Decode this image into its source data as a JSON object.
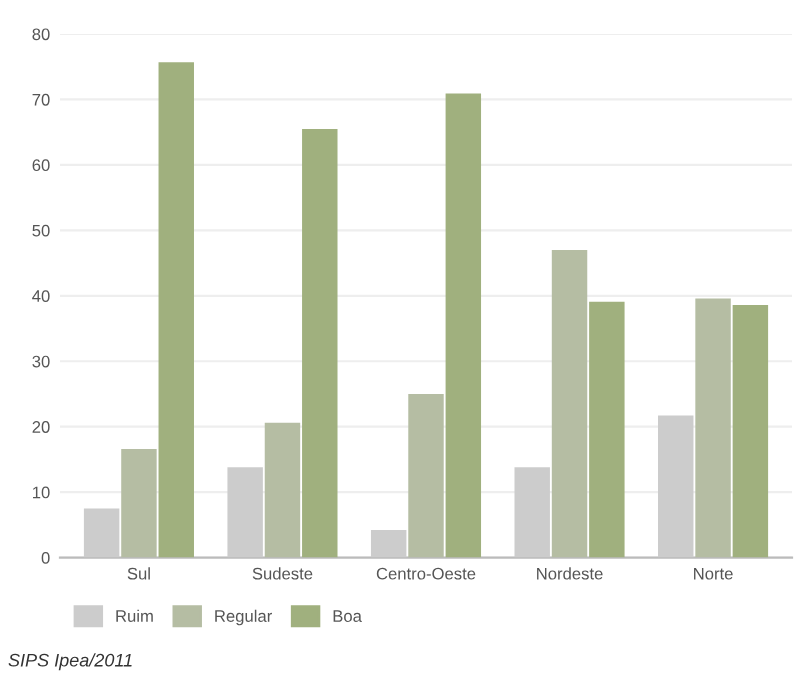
{
  "chart_data": {
    "type": "bar",
    "categories": [
      "Sul",
      "Sudeste",
      "Centro-Oeste",
      "Nordeste",
      "Norte"
    ],
    "series": [
      {
        "name": "Ruim",
        "color": "#cccccc",
        "values": [
          7.5,
          13.8,
          4.2,
          13.8,
          21.7
        ]
      },
      {
        "name": "Regular",
        "color": "#b5bda3",
        "values": [
          16.6,
          20.6,
          25.0,
          47.0,
          39.6
        ]
      },
      {
        "name": "Boa",
        "color": "#a0b07e",
        "values": [
          75.7,
          65.5,
          70.9,
          39.1,
          38.6
        ]
      }
    ],
    "ylim": [
      0,
      80
    ],
    "yticks": [
      0,
      10,
      20,
      30,
      40,
      50,
      60,
      70,
      80
    ],
    "grid": "y",
    "legend": "bottom left",
    "annotations": [
      "SIPS Ipea/2011"
    ]
  }
}
